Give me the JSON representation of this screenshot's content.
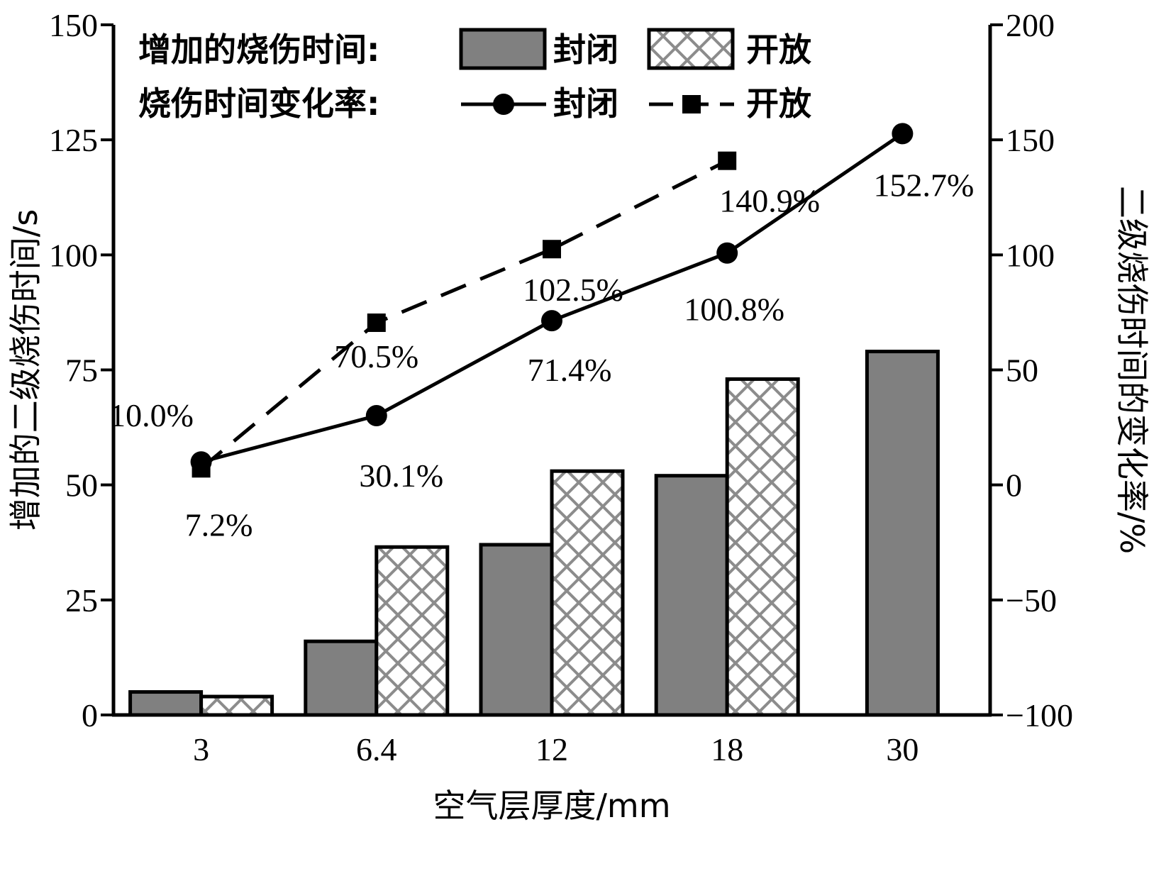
{
  "chart_data": {
    "type": "bar",
    "xlabel": "空气层厚度/mm",
    "ylabel_left": "增加的二级烧伤时间/s",
    "ylabel_right": "二级烧伤时间的变化率/%",
    "categories": [
      "3",
      "6.4",
      "12",
      "18",
      "30"
    ],
    "ylim_left": [
      0,
      150
    ],
    "yticks_left": [
      0,
      25,
      50,
      75,
      100,
      125,
      150
    ],
    "ylim_right": [
      -100,
      200
    ],
    "yticks_right": [
      -100,
      -50,
      0,
      50,
      100,
      150,
      200
    ],
    "yticks_right_labels": [
      "−100",
      "−50",
      "0",
      "50",
      "100",
      "150",
      "200"
    ],
    "bar_series": [
      {
        "name": "封闭",
        "values": [
          5,
          16,
          37,
          52,
          79
        ],
        "fill": "#808080",
        "pattern": "solid"
      },
      {
        "name": "开放",
        "values": [
          4,
          36.5,
          53,
          73,
          null
        ],
        "fill": "#ffffff",
        "pattern": "crosshatch"
      }
    ],
    "line_series": [
      {
        "name": "封闭",
        "values": [
          10.0,
          30.1,
          71.4,
          100.8,
          152.7
        ],
        "labels": [
          "10.0%",
          "30.1%",
          "71.4%",
          "100.8%",
          "152.7%"
        ],
        "marker": "circle",
        "dash": "solid"
      },
      {
        "name": "开放",
        "values": [
          7.2,
          70.5,
          102.5,
          140.9,
          null
        ],
        "labels": [
          "7.2%",
          "70.5%",
          "102.5%",
          "140.9%",
          null
        ],
        "marker": "square",
        "dash": "dashed"
      }
    ],
    "legend": {
      "placement": "top-left",
      "bar_title": "增加的烧伤时间:",
      "line_title": "烧伤时间变化率:"
    },
    "grid": false
  }
}
